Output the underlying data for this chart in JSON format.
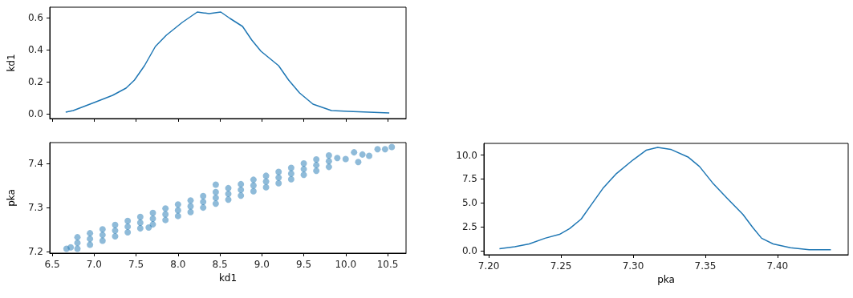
{
  "chart_data": [
    {
      "type": "line",
      "ylabel": "kd1",
      "color": "#1f77b4",
      "marker": "none",
      "grid": false,
      "tick_labels": "y",
      "x": [
        6.66,
        6.75,
        7.0,
        7.22,
        7.38,
        7.48,
        7.6,
        7.73,
        7.86,
        8.05,
        8.23,
        8.37,
        8.51,
        8.62,
        8.77,
        8.88,
        8.99,
        9.2,
        9.32,
        9.45,
        9.61,
        9.83,
        10.03,
        10.52
      ],
      "values": [
        0.01,
        0.02,
        0.07,
        0.115,
        0.16,
        0.21,
        0.3,
        0.42,
        0.49,
        0.57,
        0.635,
        0.625,
        0.635,
        0.595,
        0.545,
        0.46,
        0.39,
        0.3,
        0.21,
        0.13,
        0.06,
        0.02,
        0.015,
        0.005
      ],
      "xlim": [
        6.47,
        10.72
      ],
      "xticks": [
        6.5,
        7,
        7.5,
        8,
        8.5,
        9,
        9.5,
        10,
        10.5
      ],
      "ylim": [
        -0.03,
        0.665
      ],
      "yticks": [
        {
          "value": 0,
          "label": "0.0"
        },
        {
          "value": 0.2,
          "label": "0.2"
        },
        {
          "value": 0.4,
          "label": "0.4"
        },
        {
          "value": 0.6,
          "label": "0.6"
        }
      ]
    },
    {
      "type": "scatter",
      "xlabel": "kd1",
      "ylabel": "pka",
      "color": "#1f77b4",
      "marker": "circle",
      "grid": false,
      "x": [
        6.8,
        6.8,
        6.8,
        6.95,
        6.95,
        6.95,
        7.1,
        7.1,
        7.1,
        7.25,
        7.25,
        7.25,
        7.4,
        7.4,
        7.4,
        7.55,
        7.55,
        7.55,
        7.7,
        7.7,
        7.7,
        7.85,
        7.85,
        7.85,
        8.0,
        8.0,
        8.0,
        8.15,
        8.15,
        8.15,
        8.3,
        8.3,
        8.3,
        8.45,
        8.45,
        8.45,
        8.6,
        8.6,
        8.6,
        8.75,
        8.75,
        8.75,
        8.9,
        8.9,
        8.9,
        9.05,
        9.05,
        9.05,
        9.2,
        9.2,
        9.2,
        9.35,
        9.35,
        9.35,
        9.5,
        9.5,
        9.5,
        9.65,
        9.65,
        9.65,
        9.8,
        9.8,
        9.8,
        6.67,
        6.72,
        9.9,
        10.0,
        10.1,
        10.15,
        10.2,
        10.28,
        10.38,
        10.47,
        10.55,
        8.45,
        7.65
      ],
      "values": [
        7.22,
        7.233,
        7.207,
        7.229,
        7.242,
        7.216,
        7.238,
        7.251,
        7.225,
        7.248,
        7.261,
        7.235,
        7.257,
        7.27,
        7.244,
        7.266,
        7.279,
        7.253,
        7.275,
        7.288,
        7.262,
        7.285,
        7.298,
        7.272,
        7.294,
        7.307,
        7.281,
        7.303,
        7.316,
        7.29,
        7.313,
        7.326,
        7.3,
        7.322,
        7.335,
        7.309,
        7.331,
        7.344,
        7.318,
        7.34,
        7.353,
        7.327,
        7.35,
        7.363,
        7.337,
        7.359,
        7.372,
        7.346,
        7.368,
        7.381,
        7.355,
        7.377,
        7.39,
        7.364,
        7.387,
        7.4,
        7.374,
        7.396,
        7.409,
        7.383,
        7.405,
        7.418,
        7.392,
        7.207,
        7.21,
        7.412,
        7.41,
        7.425,
        7.403,
        7.42,
        7.417,
        7.432,
        7.432,
        7.437,
        7.352,
        7.255
      ],
      "xlim": [
        6.47,
        10.72
      ],
      "xticks": [
        {
          "value": 6.5,
          "label": "6.5"
        },
        {
          "value": 7,
          "label": "7.0"
        },
        {
          "value": 7.5,
          "label": "7.5"
        },
        {
          "value": 8,
          "label": "8.0"
        },
        {
          "value": 8.5,
          "label": "8.5"
        },
        {
          "value": 9,
          "label": "9.0"
        },
        {
          "value": 9.5,
          "label": "9.5"
        },
        {
          "value": 10,
          "label": "10.0"
        },
        {
          "value": 10.5,
          "label": "10.5"
        }
      ],
      "ylim": [
        7.197,
        7.447
      ],
      "yticks": [
        7.2,
        7.3,
        7.4
      ]
    },
    {
      "type": "line",
      "xlabel": "pka",
      "color": "#1f77b4",
      "marker": "none",
      "grid": false,
      "x": [
        7.2074,
        7.218,
        7.228,
        7.239,
        7.249,
        7.256,
        7.264,
        7.271,
        7.279,
        7.288,
        7.3,
        7.309,
        7.317,
        7.326,
        7.338,
        7.346,
        7.355,
        7.365,
        7.376,
        7.383,
        7.389,
        7.397,
        7.409,
        7.422,
        7.437
      ],
      "values": [
        0.2,
        0.4,
        0.7,
        1.3,
        1.7,
        2.3,
        3.3,
        4.8,
        6.5,
        8.0,
        9.5,
        10.5,
        10.8,
        10.6,
        9.8,
        8.8,
        7.1,
        5.5,
        3.8,
        2.4,
        1.3,
        0.7,
        0.3,
        0.1,
        0.1
      ],
      "xlim": [
        7.1966,
        7.449
      ],
      "xticks": [
        {
          "value": 7.2,
          "label": "7.20"
        },
        {
          "value": 7.25,
          "label": "7.25"
        },
        {
          "value": 7.3,
          "label": "7.30"
        },
        {
          "value": 7.35,
          "label": "7.35"
        },
        {
          "value": 7.4,
          "label": "7.40"
        }
      ],
      "ylim": [
        -0.43,
        11.22
      ],
      "yticks": [
        {
          "value": 0,
          "label": "0.0"
        },
        {
          "value": 2.5,
          "label": "2.5"
        },
        {
          "value": 5,
          "label": "5.0"
        },
        {
          "value": 7.5,
          "label": "7.5"
        },
        {
          "value": 10,
          "label": "10.0"
        }
      ]
    }
  ]
}
